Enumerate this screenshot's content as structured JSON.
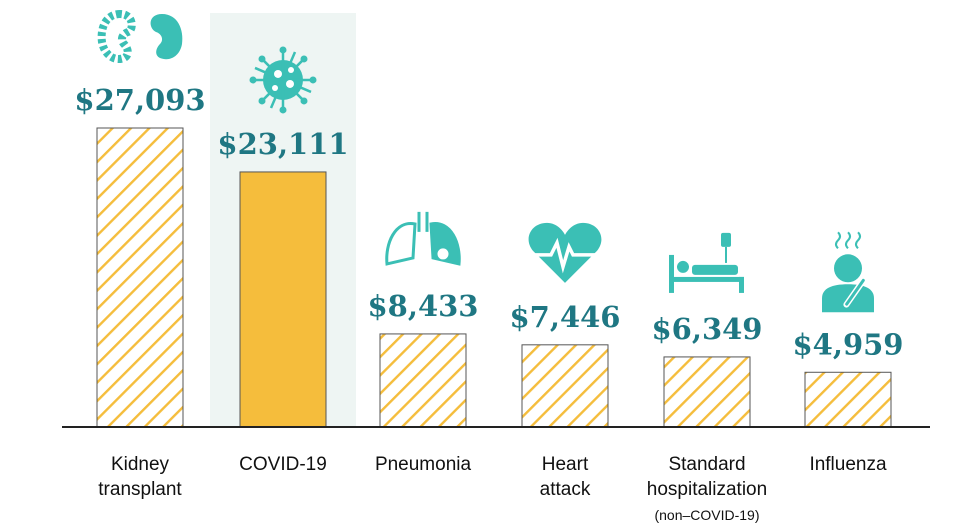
{
  "chart_data": {
    "type": "bar",
    "title": "",
    "xlabel": "",
    "ylabel": "",
    "ylim": [
      0,
      27093
    ],
    "grid": false,
    "categories": [
      {
        "label": [
          "Kidney",
          "transplant"
        ],
        "sub": "",
        "icon": "kidney-icon",
        "highlight": false
      },
      {
        "label": [
          "COVID-19"
        ],
        "sub": "",
        "icon": "virus-icon",
        "highlight": true
      },
      {
        "label": [
          "Pneumonia"
        ],
        "sub": "",
        "icon": "lungs-icon",
        "highlight": false
      },
      {
        "label": [
          "Heart",
          "attack"
        ],
        "sub": "",
        "icon": "heart-pulse-icon",
        "highlight": false
      },
      {
        "label": [
          "Standard",
          "hospitalization"
        ],
        "sub": "(non–COVID-19)",
        "icon": "hospital-bed-icon",
        "highlight": false
      },
      {
        "label": [
          "Influenza"
        ],
        "sub": "",
        "icon": "sick-person-icon",
        "highlight": false
      }
    ],
    "values": [
      27093,
      23111,
      8433,
      7446,
      6349,
      4959
    ],
    "value_labels": [
      "$27,093",
      "$23,111",
      "$8,433",
      "$7,446",
      "$6,349",
      "$4,959"
    ],
    "colors": {
      "bar": "#f5bd3c",
      "hatch": "#f5bd3c",
      "highlight_bg": "#eef5f3",
      "value_text": "#1f7783",
      "icon": "#3bbfb5"
    }
  }
}
